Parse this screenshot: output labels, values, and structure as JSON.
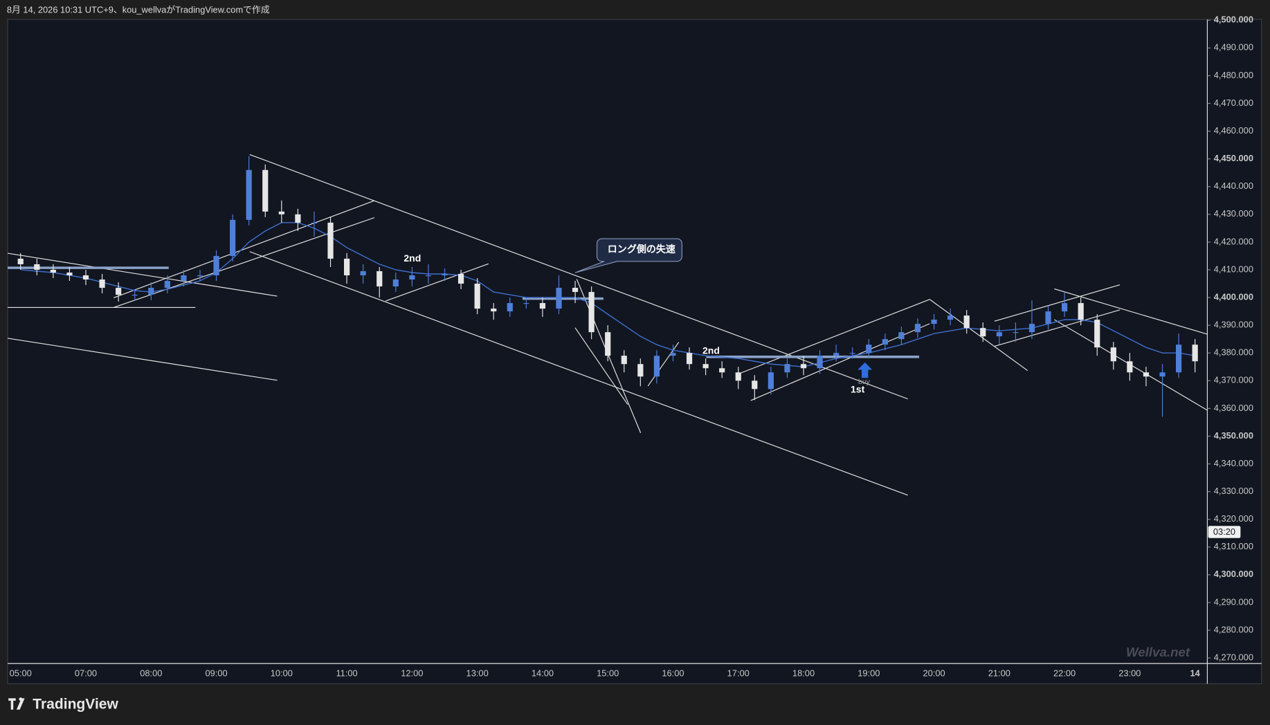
{
  "chart_data": {
    "type": "candlestick",
    "header": "8月 14, 2026 10:31 UTC+9、kou_wellvaがTradingView.comで作成",
    "brand": "TradingView",
    "watermark": "Wellva.net",
    "countdown": "03:20",
    "annotations": {
      "callout": "ロング側の失速",
      "second_a": "2nd",
      "second_b": "2nd",
      "first": "1st",
      "buy": "buy"
    },
    "categories": [
      "05:00",
      null,
      null,
      null,
      "07:00",
      null,
      null,
      null,
      "08:00",
      null,
      null,
      null,
      "09:00",
      null,
      null,
      null,
      "10:00",
      null,
      null,
      null,
      "11:00",
      null,
      null,
      null,
      "12:00",
      null,
      null,
      null,
      "13:00",
      null,
      null,
      null,
      "14:00",
      null,
      null,
      null,
      "15:00",
      null,
      null,
      null,
      "16:00",
      null,
      null,
      null,
      "17:00",
      null,
      null,
      null,
      "18:00",
      null,
      null,
      null,
      "19:00",
      null,
      null,
      null,
      "20:00",
      null,
      null,
      null,
      "21:00",
      null,
      null,
      null,
      "22:00",
      null,
      null,
      null,
      "23:00",
      null,
      null,
      null,
      "14"
    ],
    "open": [
      4414,
      4412,
      4410,
      4409,
      4408,
      4406.5,
      4403.5,
      4401,
      4401,
      4403.5,
      4406,
      4408,
      4408,
      4415,
      4428,
      4446,
      4431,
      4430,
      4427,
      4427,
      4414,
      4408,
      4409.5,
      4404,
      4406.5,
      4408,
      4408,
      4408.5,
      4405,
      4396,
      4395,
      4398,
      4398,
      4396,
      4403.5,
      4402,
      4387.5,
      4379,
      4376,
      4371.5,
      4379,
      4380,
      4376,
      4374.5,
      4373,
      4370,
      4367,
      4373,
      4376,
      4374.5,
      4379,
      4380,
      4380,
      4383,
      4385,
      4387.5,
      4390.5,
      4392,
      4393.5,
      4389,
      4386,
      4387.5,
      4387.5,
      4390.5,
      4395,
      4398,
      4392,
      4382,
      4377,
      4373,
      4371.5,
      4373,
      4383
    ],
    "high": [
      4416,
      4414,
      4412,
      4411,
      4410,
      4408.5,
      4405.5,
      4403,
      4405.5,
      4408,
      4410,
      4410,
      4417,
      4430,
      4451,
      4448,
      4435,
      4432,
      4431,
      4429,
      4416,
      4412,
      4411,
      4409,
      4411,
      4412,
      4410.5,
      4410,
      4407,
      4398,
      4400,
      4400,
      4400,
      4408,
      4406,
      4404,
      4390,
      4381,
      4378,
      4381,
      4383,
      4382,
      4378,
      4377,
      4375,
      4372,
      4375,
      4378,
      4379,
      4381,
      4383,
      4382,
      4385,
      4387,
      4389.5,
      4392.5,
      4394,
      4396,
      4395.5,
      4391,
      4390,
      4391,
      4399,
      4397,
      4402,
      4400,
      4394,
      4384,
      4380,
      4375,
      4376,
      4387,
      4385
    ],
    "low": [
      4410,
      4408,
      4407,
      4406,
      4404.5,
      4401.5,
      4398.5,
      4399,
      4399,
      4401.5,
      4404,
      4406,
      4406,
      4413,
      4426,
      4429,
      4427,
      4424,
      4422,
      4411,
      4405,
      4405,
      4400,
      4402,
      4404,
      4405,
      4406,
      4403,
      4394,
      4392,
      4393,
      4396,
      4393,
      4394,
      4398,
      4385,
      4377,
      4373,
      4368,
      4369,
      4377,
      4374,
      4372,
      4371,
      4367,
      4363,
      4365,
      4371,
      4372,
      4372.5,
      4377,
      4378,
      4378,
      4381,
      4383,
      4385.5,
      4388.5,
      4390,
      4387,
      4384,
      4383,
      4384,
      4385,
      4388.5,
      4393,
      4390,
      4379,
      4374,
      4370,
      4368,
      4357,
      4371,
      4373
    ],
    "close": [
      4412,
      4410,
      4409,
      4408,
      4406.5,
      4403.5,
      4401,
      4401,
      4403.5,
      4406,
      4408,
      4408,
      4415,
      4428,
      4446,
      4431,
      4430,
      4427,
      4427,
      4414,
      4408,
      4409.5,
      4404,
      4406.5,
      4408,
      4408,
      4408.5,
      4405,
      4396,
      4395,
      4398,
      4398,
      4396,
      4403.5,
      4402,
      4387.5,
      4379,
      4376,
      4371.5,
      4379,
      4380,
      4376,
      4374.5,
      4373,
      4370,
      4367,
      4373,
      4376,
      4374.5,
      4379,
      4380,
      4380,
      4383,
      4385,
      4387.5,
      4390.5,
      4392,
      4393.5,
      4389,
      4386,
      4387.5,
      4387.5,
      4390.5,
      4395,
      4398,
      4392,
      4382,
      4377,
      4373,
      4371.5,
      4373,
      4383,
      4377
    ],
    "up_color": "#4f7fd9",
    "down_color": "#e6e6e6",
    "line_overlay": {
      "color": "#3f6fd1",
      "values": [
        4410,
        4409.5,
        4409,
        4408,
        4407,
        4405.5,
        4404,
        4402.5,
        4402,
        4403,
        4404.5,
        4406,
        4409,
        4414,
        4420,
        4424,
        4427,
        4427,
        4425,
        4422,
        4418,
        4415,
        4412,
        4410,
        4409,
        4408.5,
        4408.5,
        4408,
        4406,
        4402,
        4401,
        4400,
        4400,
        4400,
        4400,
        4398,
        4394,
        4390,
        4386,
        4383,
        4381,
        4380,
        4379,
        4378.5,
        4378,
        4377,
        4376,
        4375.5,
        4375,
        4376.5,
        4378,
        4379,
        4380,
        4381.5,
        4383,
        4385,
        4387,
        4388,
        4389,
        4388.5,
        4388,
        4388.5,
        4389,
        4390.5,
        4392,
        4392,
        4391,
        4388,
        4385,
        4382,
        4380,
        4380,
        4379
      ]
    },
    "ylim": [
      4268,
      4500.3
    ],
    "yticks": [
      {
        "value": 4270,
        "label": "4,270.000"
      },
      {
        "value": 4280,
        "label": "4,280.000"
      },
      {
        "value": 4290,
        "label": "4,290.000"
      },
      {
        "value": 4300,
        "label": "4,300.000"
      },
      {
        "value": 4310,
        "label": "4,310.000"
      },
      {
        "value": 4320,
        "label": "4,320.000"
      },
      {
        "value": 4330,
        "label": "4,330.000"
      },
      {
        "value": 4340,
        "label": "4,340.000"
      },
      {
        "value": 4350,
        "label": "4,350.000"
      },
      {
        "value": 4360,
        "label": "4,360.000"
      },
      {
        "value": 4370,
        "label": "4,370.000"
      },
      {
        "value": 4380,
        "label": "4,380.000"
      },
      {
        "value": 4390,
        "label": "4,390.000"
      },
      {
        "value": 4400,
        "label": "4,400.000"
      },
      {
        "value": 4410,
        "label": "4,410.000"
      },
      {
        "value": 4420,
        "label": "4,420.000"
      },
      {
        "value": 4430,
        "label": "4,430.000"
      },
      {
        "value": 4440,
        "label": "4,440.000"
      },
      {
        "value": 4450,
        "label": "4,450.000"
      },
      {
        "value": 4460,
        "label": "4,460.000"
      },
      {
        "value": 4470,
        "label": "4,470.000"
      },
      {
        "value": 4480,
        "label": "4,480.000"
      },
      {
        "value": 4490,
        "label": "4,490.000"
      },
      {
        "value": 4500,
        "label": "4,500.000"
      }
    ],
    "grid": false
  }
}
